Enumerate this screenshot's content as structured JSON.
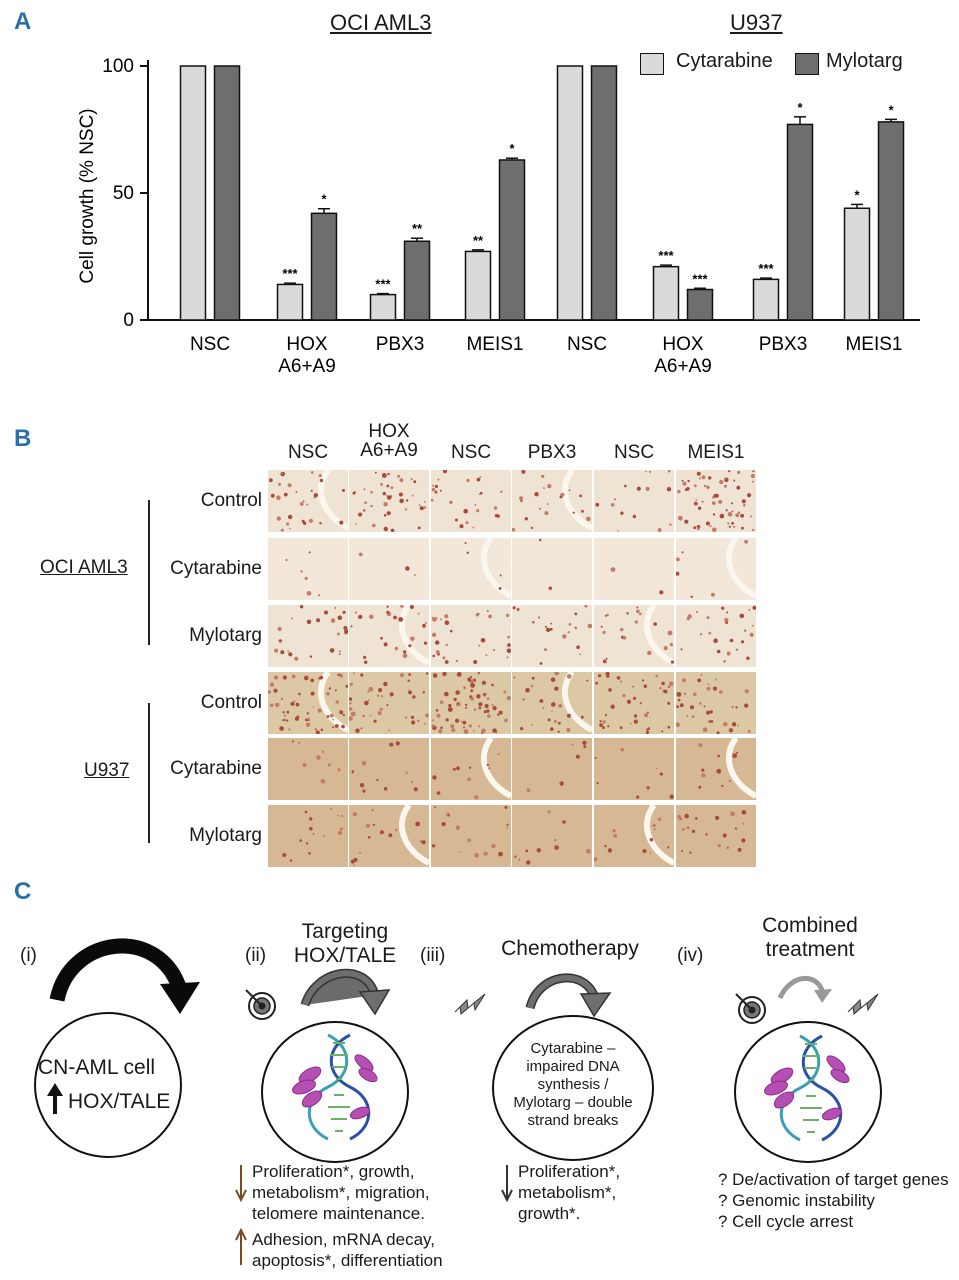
{
  "panel_a": {
    "letter": "A",
    "group_titles": [
      "OCI AML3",
      "U937"
    ],
    "legend": [
      {
        "label": "Cytarabine",
        "color": "#d9dadb"
      },
      {
        "label": "Mylotarg",
        "color": "#6d6e70"
      }
    ]
  },
  "chart_data": {
    "type": "bar",
    "title": "",
    "xlabel": "",
    "ylabel": "Cell growth (% NSC)",
    "ylim": [
      0,
      100
    ],
    "yticks": [
      0,
      50,
      100
    ],
    "groups": [
      "OCI AML3",
      "U937"
    ],
    "categories": [
      "NSC",
      "HOX\nA6+A9",
      "PBX3",
      "MEIS1",
      "NSC",
      "HOX\nA6+A9",
      "PBX3",
      "MEIS1"
    ],
    "series": [
      {
        "name": "Cytarabine",
        "color": "#d9dadb",
        "values": [
          100,
          14,
          10,
          27,
          100,
          21,
          16,
          44
        ],
        "errors": [
          0,
          0.5,
          0.4,
          0.6,
          0,
          0.6,
          0.5,
          1.5
        ],
        "annotations": [
          "",
          "***",
          "***",
          "**",
          "",
          "***",
          "***",
          "*"
        ]
      },
      {
        "name": "Mylotarg",
        "color": "#6d6e70",
        "values": [
          100,
          42,
          31,
          63,
          100,
          12,
          77,
          78
        ],
        "errors": [
          0,
          1.8,
          1.2,
          0.7,
          0,
          0.5,
          3.0,
          1.0
        ],
        "annotations": [
          "",
          "*",
          "**",
          "*",
          "",
          "***",
          "*",
          "*"
        ]
      }
    ]
  },
  "panel_b": {
    "letter": "B",
    "columns": [
      "NSC",
      "HOX\nA6+A9",
      "NSC",
      "PBX3",
      "NSC",
      "MEIS1"
    ],
    "cell_lines": [
      "OCI AML3",
      "U937"
    ],
    "rows": [
      "Control",
      "Cytarabine",
      "Mylotarg",
      "Control",
      "Cytarabine",
      "Mylotarg"
    ],
    "colony_density": [
      [
        30,
        40,
        25,
        20,
        15,
        60
      ],
      [
        6,
        3,
        4,
        2,
        2,
        6
      ],
      [
        25,
        25,
        30,
        20,
        20,
        25
      ],
      [
        55,
        40,
        70,
        25,
        40,
        35
      ],
      [
        8,
        12,
        10,
        6,
        8,
        10
      ],
      [
        15,
        15,
        15,
        10,
        12,
        20
      ]
    ]
  },
  "panel_c": {
    "letter": "C",
    "step_labels": [
      "(i)",
      "(ii)",
      "(iii)",
      "(iv)"
    ],
    "titles": [
      "Targeting\nHOX/TALE",
      "Chemotherapy",
      "Combined\ntreatment"
    ],
    "cell_label": "CN-AML cell",
    "cell_sub": "HOX/TALE",
    "chemo_text": "Cytarabine –\nimpaired DNA\nsynthesis /\nMylotarg – double\nstrand breaks",
    "targeting_down": "Proliferation*, growth,\nmetabolism*, migration,\ntelomere maintenance.",
    "targeting_up": "Adhesion, mRNA decay,\napoptosis*, differentiation",
    "chemo_down": "Proliferation*,\nmetabolism*,\ngrowth*.",
    "combined_questions": "? De/activation of target genes\n? Genomic instability\n? Cell cycle arrest"
  }
}
